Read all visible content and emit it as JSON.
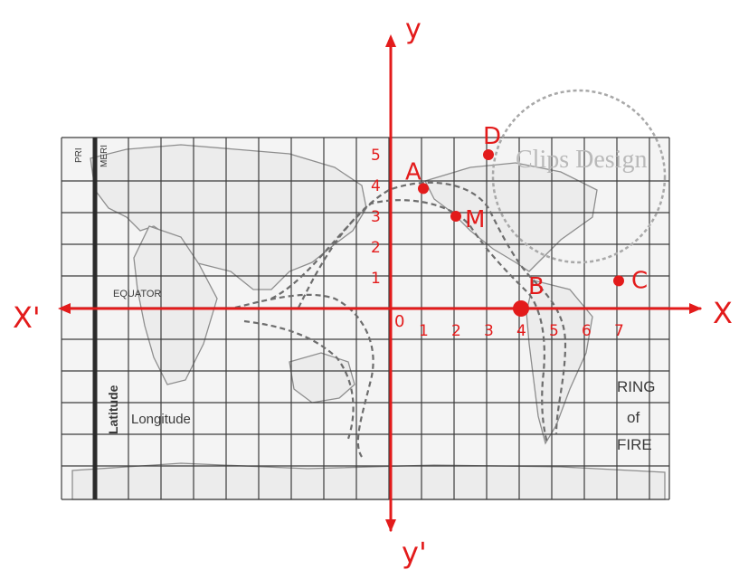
{
  "map": {
    "equator_label": "EQUATOR",
    "latitude_label": "Latitude",
    "longitude_label": "Longitude",
    "ring_label": [
      "RING",
      "of",
      "FIRE"
    ],
    "meridian_label": "MERI",
    "prime_label": "PRI",
    "watermark": "Clips Design"
  },
  "axes": {
    "x_positive": "X",
    "x_negative": "X'",
    "y_positive": "y",
    "y_negative": "y'",
    "origin": "0",
    "x_ticks": [
      "1",
      "2",
      "3",
      "4",
      "5",
      "6",
      "7"
    ],
    "y_ticks": [
      "1",
      "2",
      "3",
      "4",
      "5"
    ]
  },
  "points": [
    {
      "label": "A",
      "x": 1,
      "y": 3.9
    },
    {
      "label": "M",
      "x": 2,
      "y": 3
    },
    {
      "label": "D",
      "x": 3,
      "y": 5
    },
    {
      "label": "B",
      "x": 4,
      "y": 0
    },
    {
      "label": "C",
      "x": 7,
      "y": 0.9
    }
  ],
  "colors": {
    "annotation": "#e31b1b",
    "grid": "#3c3c3c",
    "land": "#8e8e8e",
    "map_bg": "#f4f4f4"
  }
}
